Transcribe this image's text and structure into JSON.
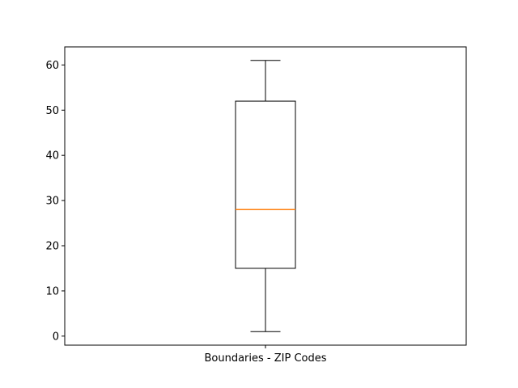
{
  "chart_data": {
    "type": "box",
    "title": "",
    "xlabel": "",
    "ylabel": "",
    "categories": [
      "Boundaries - ZIP Codes"
    ],
    "boxes": [
      {
        "category": "Boundaries - ZIP Codes",
        "whisker_low": 1,
        "q1": 15,
        "median": 28,
        "q3": 52,
        "whisker_high": 61
      }
    ],
    "ylim": [
      -2,
      64
    ],
    "y_ticks": [
      0,
      10,
      20,
      30,
      40,
      50,
      60
    ],
    "grid": false,
    "legend": "none",
    "colors": {
      "box": "#000000",
      "median": "#ff7f0e",
      "axes": "#000000"
    }
  }
}
